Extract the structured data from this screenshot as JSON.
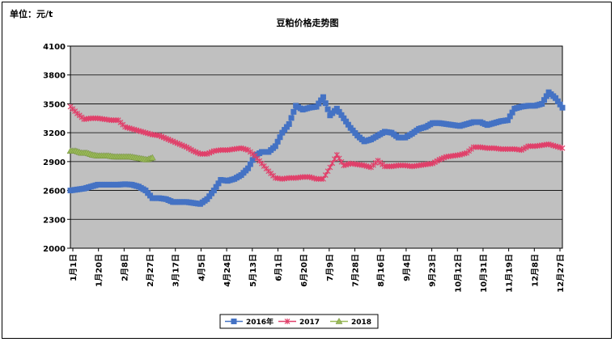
{
  "chart_data": {
    "type": "line",
    "title": "豆粕价格走势图",
    "unit_label": "单位：元/t",
    "ylim": [
      2000,
      4100
    ],
    "y_ticks": [
      2000,
      2300,
      2600,
      2900,
      3200,
      3500,
      3800,
      4100
    ],
    "x_tick_labels": [
      "1月1日",
      "1月20日",
      "2月8日",
      "2月27日",
      "3月17日",
      "4月5日",
      "4月24日",
      "5月13日",
      "6月1日",
      "6月20日",
      "7月9日",
      "7月28日",
      "8月16日",
      "9月4日",
      "9月23日",
      "10月12日",
      "10月31日",
      "11月19日",
      "12月8日",
      "12月27日"
    ],
    "grid": true,
    "legend_position": "bottom",
    "colors": {
      "2016年": "#4472C4",
      "2017": "#E0406A",
      "2018": "#9BBB59",
      "plot_bg": "#C0C0C0"
    },
    "series": [
      {
        "name": "2016年",
        "marker": "square",
        "x": [
          0,
          5,
          10,
          15,
          20,
          25,
          30,
          35,
          40,
          45,
          50,
          55,
          60,
          65,
          70,
          75,
          80,
          85,
          90,
          95,
          100,
          105,
          110,
          115,
          120,
          125,
          130,
          135,
          140,
          145,
          150,
          155,
          160,
          165,
          170,
          175,
          180,
          185,
          190,
          195,
          200,
          205,
          210,
          215,
          220,
          225,
          230,
          235,
          240,
          245,
          250,
          255,
          260,
          265,
          270,
          275,
          280,
          285,
          290,
          295,
          300,
          305,
          310,
          315,
          320,
          325,
          330,
          335,
          340,
          345,
          350,
          355,
          360
        ],
        "values": [
          2600,
          2610,
          2620,
          2640,
          2660,
          2660,
          2660,
          2660,
          2665,
          2660,
          2640,
          2600,
          2520,
          2520,
          2510,
          2480,
          2480,
          2480,
          2470,
          2460,
          2510,
          2600,
          2710,
          2700,
          2720,
          2760,
          2830,
          2960,
          3000,
          3000,
          3060,
          3200,
          3290,
          3480,
          3440,
          3460,
          3470,
          3570,
          3380,
          3450,
          3350,
          3250,
          3170,
          3110,
          3130,
          3170,
          3210,
          3200,
          3150,
          3150,
          3190,
          3240,
          3260,
          3300,
          3300,
          3290,
          3280,
          3270,
          3290,
          3310,
          3310,
          3280,
          3300,
          3320,
          3330,
          3450,
          3470,
          3480,
          3480,
          3500,
          3620,
          3560,
          3460
        ]
      },
      {
        "name": "2017",
        "marker": "x",
        "x": [
          0,
          5,
          10,
          15,
          20,
          25,
          30,
          35,
          40,
          45,
          50,
          55,
          60,
          65,
          70,
          75,
          80,
          85,
          90,
          95,
          100,
          105,
          110,
          115,
          120,
          125,
          130,
          135,
          140,
          145,
          150,
          155,
          160,
          165,
          170,
          175,
          180,
          185,
          190,
          195,
          200,
          205,
          210,
          215,
          220,
          225,
          230,
          235,
          240,
          245,
          250,
          255,
          260,
          265,
          270,
          275,
          280,
          285,
          290,
          295,
          300,
          305,
          310,
          315,
          320,
          325,
          330,
          335,
          340,
          345,
          350,
          355,
          360
        ],
        "values": [
          3470,
          3400,
          3340,
          3350,
          3350,
          3340,
          3330,
          3330,
          3260,
          3240,
          3220,
          3200,
          3180,
          3170,
          3140,
          3110,
          3080,
          3050,
          3010,
          2980,
          2980,
          3010,
          3020,
          3020,
          3030,
          3040,
          3020,
          2960,
          2880,
          2800,
          2730,
          2720,
          2730,
          2730,
          2740,
          2740,
          2720,
          2720,
          2840,
          2970,
          2860,
          2880,
          2870,
          2860,
          2840,
          2910,
          2850,
          2850,
          2860,
          2860,
          2850,
          2860,
          2870,
          2880,
          2920,
          2950,
          2960,
          2970,
          2990,
          3050,
          3050,
          3040,
          3040,
          3030,
          3030,
          3030,
          3020,
          3060,
          3060,
          3070,
          3080,
          3060,
          3040
        ]
      },
      {
        "name": "2018",
        "marker": "triangle",
        "x": [
          0,
          4,
          8,
          12,
          16,
          20,
          24,
          28,
          32,
          36,
          40,
          44,
          48,
          52,
          56,
          60
        ],
        "values": [
          3010,
          3010,
          2990,
          2990,
          2970,
          2960,
          2960,
          2960,
          2950,
          2950,
          2950,
          2950,
          2940,
          2930,
          2920,
          2940
        ]
      }
    ]
  }
}
